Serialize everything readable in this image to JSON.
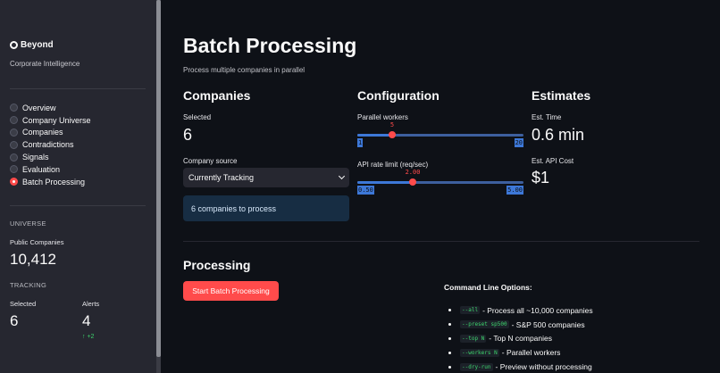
{
  "sidebar": {
    "brand": "Beyond",
    "brand_subtitle": "Corporate Intelligence",
    "nav": [
      {
        "label": "Overview",
        "selected": false
      },
      {
        "label": "Company Universe",
        "selected": false
      },
      {
        "label": "Companies",
        "selected": false
      },
      {
        "label": "Contradictions",
        "selected": false
      },
      {
        "label": "Signals",
        "selected": false
      },
      {
        "label": "Evaluation",
        "selected": false
      },
      {
        "label": "Batch Processing",
        "selected": true
      }
    ],
    "universe_heading": "UNIVERSE",
    "public_companies_label": "Public Companies",
    "public_companies_value": "10,412",
    "tracking_heading": "TRACKING",
    "selected_label": "Selected",
    "selected_value": "6",
    "alerts_label": "Alerts",
    "alerts_value": "4",
    "alerts_delta": "+2"
  },
  "page": {
    "title": "Batch Processing",
    "subtitle": "Process multiple companies in parallel"
  },
  "companies": {
    "heading": "Companies",
    "selected_label": "Selected",
    "selected_value": "6",
    "source_label": "Company source",
    "source_value": "Currently Tracking",
    "info": "6 companies to process"
  },
  "configuration": {
    "heading": "Configuration",
    "workers": {
      "label": "Parallel workers",
      "value": 5,
      "value_text": "5",
      "min": 1,
      "max": 20,
      "min_text": "1",
      "max_text": "20"
    },
    "rate": {
      "label": "API rate limit (req/sec)",
      "value": 2.0,
      "value_text": "2.00",
      "min": 0.5,
      "max": 5.0,
      "min_text": "0.50",
      "max_text": "5.00"
    }
  },
  "estimates": {
    "heading": "Estimates",
    "time_label": "Est. Time",
    "time_value": "0.6 min",
    "cost_label": "Est. API Cost",
    "cost_value": "$1"
  },
  "processing": {
    "heading": "Processing",
    "button": "Start Batch Processing",
    "cmd_title": "Command Line Options:",
    "options": [
      {
        "flag": "--all",
        "desc": "- Process all ~10,000 companies"
      },
      {
        "flag": "--preset sp500",
        "desc": "- S&P 500 companies"
      },
      {
        "flag": "--top N",
        "desc": "- Top N companies"
      },
      {
        "flag": "--workers N",
        "desc": "- Parallel workers"
      },
      {
        "flag": "--dry-run",
        "desc": "- Preview without processing"
      }
    ]
  },
  "colors": {
    "accent": "#ff4b4b",
    "slider": "#3d78d8",
    "delta": "#3dd56d"
  }
}
